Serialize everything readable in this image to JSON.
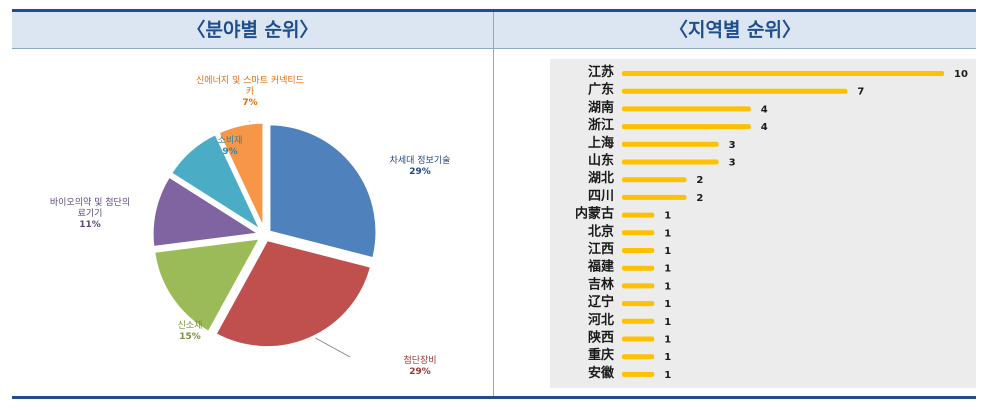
{
  "headers": {
    "left": "〈분야별 순위〉",
    "right": "〈지역별 순위〉"
  },
  "chart_data": [
    {
      "type": "pie",
      "title": "",
      "slices": [
        {
          "label": "차세대 정보기술",
          "value": 29,
          "pct": "29%",
          "color": "#4f81bd",
          "label_color": "#1f497d"
        },
        {
          "label": "첨단장비",
          "value": 29,
          "pct": "29%",
          "color": "#c0504d",
          "label_color": "#953735"
        },
        {
          "label": "신소재",
          "value": 15,
          "pct": "15%",
          "color": "#9bbb59",
          "label_color": "#76923c"
        },
        {
          "label": "바이오의약 및 첨단의료기기",
          "value": 11,
          "pct": "11%",
          "color": "#8064a2",
          "label_color": "#5f497a"
        },
        {
          "label": "소비재",
          "value": 9,
          "pct": "9%",
          "color": "#4bacc6",
          "label_color": "#31859c"
        },
        {
          "label": "신에너지 및 스마트 커넥티드카",
          "value": 7,
          "pct": "7%",
          "color": "#f79646",
          "label_color": "#e36c09"
        }
      ]
    },
    {
      "type": "bar",
      "orientation": "horizontal",
      "title": "",
      "categories": [
        "江苏",
        "广东",
        "湖南",
        "浙江",
        "上海",
        "山东",
        "湖北",
        "四川",
        "内蒙古",
        "北京",
        "江西",
        "福建",
        "吉林",
        "辽宁",
        "河北",
        "陕西",
        "重庆",
        "安徽"
      ],
      "values": [
        10,
        7,
        4,
        4,
        3,
        3,
        2,
        2,
        1,
        1,
        1,
        1,
        1,
        1,
        1,
        1,
        1,
        1
      ],
      "bar_color": "#ffc000",
      "xlim": [
        0,
        10
      ]
    }
  ]
}
